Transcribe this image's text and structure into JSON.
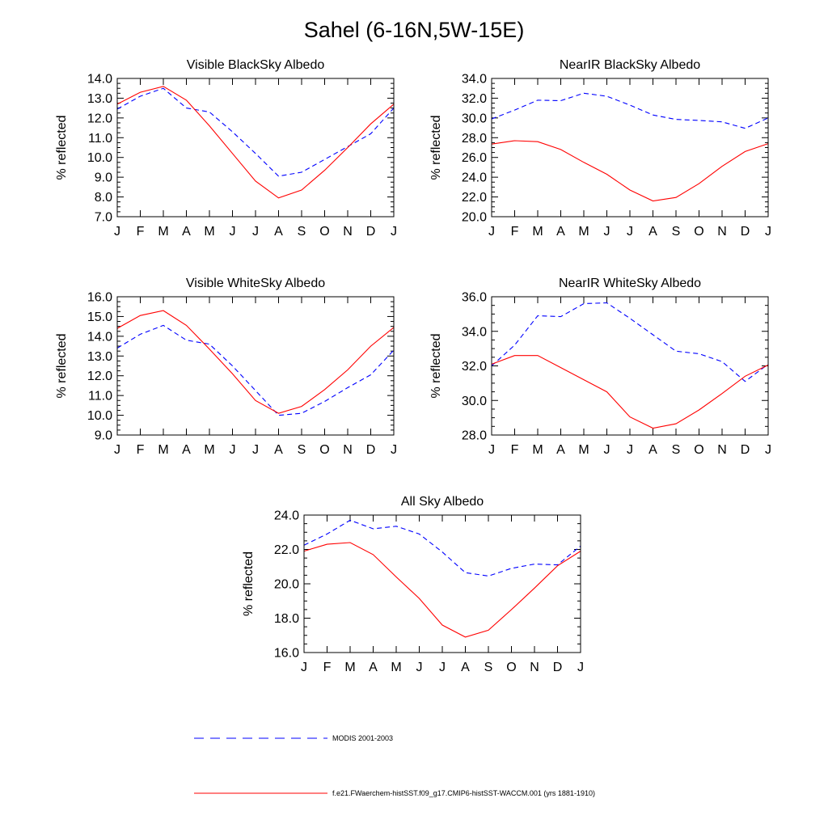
{
  "title": "Sahel (6-16N,5W-15E)",
  "legend": [
    {
      "label": "MODIS 2001-2003",
      "color": "#0000ff",
      "dashed": true
    },
    {
      "label": "f.e21.FWaerchem-histSST.f09_g17.CMIP6-histSST-WACCM.001 (yrs 1881-1910)",
      "color": "#ff0000",
      "dashed": false
    }
  ],
  "chart_data": [
    {
      "type": "line",
      "title": "Visible BlackSky Albedo",
      "ylabel": "% reflected",
      "categories": [
        "J",
        "F",
        "M",
        "A",
        "M",
        "J",
        "J",
        "A",
        "S",
        "O",
        "N",
        "D",
        "J"
      ],
      "ylim": [
        7.0,
        14.0
      ],
      "yticks": [
        "7.0",
        "8.0",
        "9.0",
        "10.0",
        "11.0",
        "12.0",
        "13.0",
        "14.0"
      ],
      "series": [
        {
          "name": "MODIS 2001-2003",
          "color": "#0000ff",
          "dashed": true,
          "values": [
            12.45,
            13.1,
            13.5,
            12.5,
            12.3,
            11.3,
            10.2,
            9.05,
            9.25,
            9.9,
            10.55,
            11.2,
            12.5
          ]
        },
        {
          "name": "f.e21.FWaerchem-histSST.f09_g17.CMIP6-histSST-WACCM.001 (yrs 1881-1910)",
          "color": "#ff0000",
          "dashed": false,
          "values": [
            12.7,
            13.3,
            13.6,
            12.9,
            11.6,
            10.2,
            8.8,
            7.95,
            8.35,
            9.35,
            10.5,
            11.7,
            12.7
          ]
        }
      ]
    },
    {
      "type": "line",
      "title": "NearIR BlackSky Albedo",
      "ylabel": "% reflected",
      "categories": [
        "J",
        "F",
        "M",
        "A",
        "M",
        "J",
        "J",
        "A",
        "S",
        "O",
        "N",
        "D",
        "J"
      ],
      "ylim": [
        20.0,
        34.0
      ],
      "yticks": [
        "20.0",
        "22.0",
        "24.0",
        "26.0",
        "28.0",
        "30.0",
        "32.0",
        "34.0"
      ],
      "series": [
        {
          "name": "MODIS 2001-2003",
          "color": "#0000ff",
          "dashed": true,
          "values": [
            29.9,
            30.8,
            31.8,
            31.75,
            32.5,
            32.2,
            31.3,
            30.3,
            29.85,
            29.75,
            29.6,
            28.95,
            30.0
          ]
        },
        {
          "name": "f.e21.FWaerchem-histSST.f09_g17.CMIP6-histSST-WACCM.001 (yrs 1881-1910)",
          "color": "#ff0000",
          "dashed": false,
          "values": [
            27.35,
            27.7,
            27.6,
            26.8,
            25.5,
            24.3,
            22.7,
            21.6,
            21.95,
            23.35,
            25.1,
            26.6,
            27.4
          ]
        }
      ]
    },
    {
      "type": "line",
      "title": "Visible WhiteSky Albedo",
      "ylabel": "% reflected",
      "categories": [
        "J",
        "F",
        "M",
        "A",
        "M",
        "J",
        "J",
        "A",
        "S",
        "O",
        "N",
        "D",
        "J"
      ],
      "ylim": [
        9.0,
        16.0
      ],
      "yticks": [
        "9.0",
        "10.0",
        "11.0",
        "12.0",
        "13.0",
        "14.0",
        "15.0",
        "16.0"
      ],
      "series": [
        {
          "name": "MODIS 2001-2003",
          "color": "#0000ff",
          "dashed": true,
          "values": [
            13.4,
            14.1,
            14.55,
            13.8,
            13.6,
            12.5,
            11.25,
            10.0,
            10.1,
            10.7,
            11.4,
            12.05,
            13.3
          ]
        },
        {
          "name": "f.e21.FWaerchem-histSST.f09_g17.CMIP6-histSST-WACCM.001 (yrs 1881-1910)",
          "color": "#ff0000",
          "dashed": false,
          "values": [
            14.4,
            15.05,
            15.3,
            14.55,
            13.35,
            12.1,
            10.75,
            10.1,
            10.45,
            11.3,
            12.3,
            13.5,
            14.45
          ]
        }
      ]
    },
    {
      "type": "line",
      "title": "NearIR WhiteSky Albedo",
      "ylabel": "% reflected",
      "categories": [
        "J",
        "F",
        "M",
        "A",
        "M",
        "J",
        "J",
        "A",
        "S",
        "O",
        "N",
        "D",
        "J"
      ],
      "ylim": [
        28.0,
        36.0
      ],
      "yticks": [
        "28.0",
        "30.0",
        "32.0",
        "34.0",
        "36.0"
      ],
      "series": [
        {
          "name": "MODIS 2001-2003",
          "color": "#0000ff",
          "dashed": true,
          "values": [
            32.0,
            33.2,
            34.9,
            34.85,
            35.6,
            35.65,
            34.75,
            33.8,
            32.85,
            32.7,
            32.25,
            31.1,
            32.1
          ]
        },
        {
          "name": "f.e21.FWaerchem-histSST.f09_g17.CMIP6-histSST-WACCM.001 (yrs 1881-1910)",
          "color": "#ff0000",
          "dashed": false,
          "values": [
            32.1,
            32.6,
            32.6,
            31.9,
            31.2,
            30.5,
            29.05,
            28.4,
            28.65,
            29.45,
            30.4,
            31.4,
            32.05
          ]
        }
      ]
    },
    {
      "type": "line",
      "title": "All Sky Albedo",
      "ylabel": "% reflected",
      "categories": [
        "J",
        "F",
        "M",
        "A",
        "M",
        "J",
        "J",
        "A",
        "S",
        "O",
        "N",
        "D",
        "J"
      ],
      "ylim": [
        16.0,
        24.0
      ],
      "yticks": [
        "16.0",
        "18.0",
        "20.0",
        "22.0",
        "24.0"
      ],
      "series": [
        {
          "name": "MODIS 2001-2003",
          "color": "#0000ff",
          "dashed": true,
          "values": [
            22.25,
            22.9,
            23.7,
            23.2,
            23.35,
            22.9,
            21.85,
            20.65,
            20.45,
            20.9,
            21.15,
            21.1,
            22.2
          ]
        },
        {
          "name": "f.e21.FWaerchem-histSST.f09_g17.CMIP6-histSST-WACCM.001 (yrs 1881-1910)",
          "color": "#ff0000",
          "dashed": false,
          "values": [
            21.9,
            22.3,
            22.4,
            21.7,
            20.4,
            19.15,
            17.6,
            16.9,
            17.3,
            18.5,
            19.75,
            21.05,
            21.9
          ]
        }
      ]
    }
  ]
}
